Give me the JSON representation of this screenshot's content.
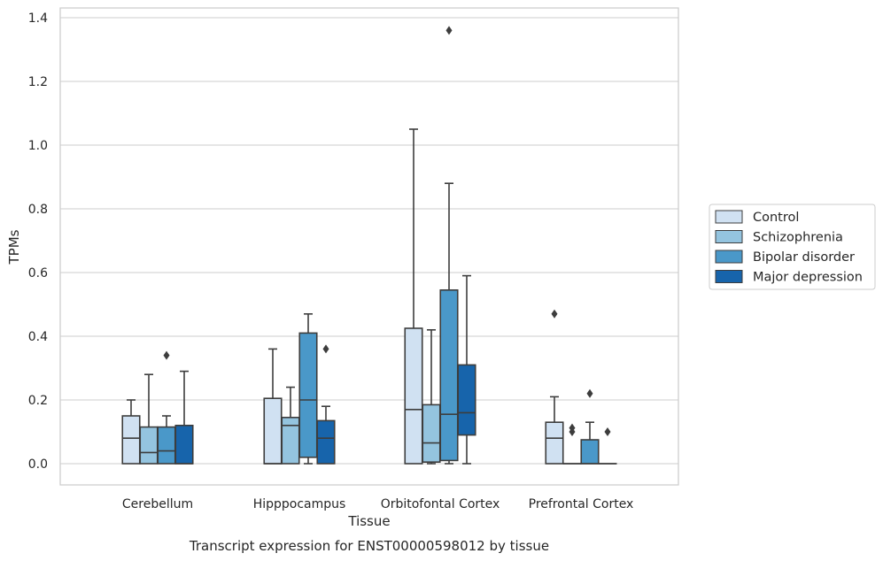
{
  "caption": "Transcript expression for ENST00000598012 by tissue",
  "chart_data": {
    "type": "boxplot",
    "xlabel": "Tissue",
    "ylabel": "TPMs",
    "ylim": [
      -0.065,
      1.43
    ],
    "yticks": [
      0.0,
      0.2,
      0.4,
      0.6,
      0.8,
      1.0,
      1.2,
      1.4
    ],
    "ytick_labels": [
      "0.0",
      "0.2",
      "0.4",
      "0.6",
      "0.8",
      "1.0",
      "1.2",
      "1.4"
    ],
    "grid": "horizontal",
    "legend_position": "right",
    "categories": [
      "Cerebellum",
      "Hipppocampus",
      "Orbitofontal Cortex",
      "Prefrontal Cortex"
    ],
    "series": [
      {
        "name": "Control",
        "color": "#d0e1f2",
        "boxes": [
          {
            "whislo": 0.0,
            "q1": 0.0,
            "med": 0.08,
            "q3": 0.15,
            "whishi": 0.2,
            "fliers": []
          },
          {
            "whislo": 0.0,
            "q1": 0.0,
            "med": 0.0,
            "q3": 0.205,
            "whishi": 0.36,
            "fliers": []
          },
          {
            "whislo": 0.0,
            "q1": 0.0,
            "med": 0.17,
            "q3": 0.425,
            "whishi": 1.05,
            "fliers": []
          },
          {
            "whislo": 0.0,
            "q1": 0.0,
            "med": 0.08,
            "q3": 0.13,
            "whishi": 0.21,
            "fliers": [
              0.47
            ]
          }
        ]
      },
      {
        "name": "Schizophrenia",
        "color": "#94c4df",
        "boxes": [
          {
            "whislo": 0.0,
            "q1": 0.0,
            "med": 0.035,
            "q3": 0.115,
            "whishi": 0.28,
            "fliers": []
          },
          {
            "whislo": 0.0,
            "q1": 0.0,
            "med": 0.12,
            "q3": 0.145,
            "whishi": 0.24,
            "fliers": []
          },
          {
            "whislo": 0.0,
            "q1": 0.005,
            "med": 0.065,
            "q3": 0.185,
            "whishi": 0.42,
            "fliers": []
          },
          {
            "whislo": 0.0,
            "q1": 0.0,
            "med": 0.0,
            "q3": 0.0,
            "whishi": 0.0,
            "fliers": [
              0.1,
              0.112
            ]
          }
        ]
      },
      {
        "name": "Bipolar disorder",
        "color": "#4a98c9",
        "boxes": [
          {
            "whislo": 0.0,
            "q1": 0.0,
            "med": 0.04,
            "q3": 0.115,
            "whishi": 0.15,
            "fliers": [
              0.34
            ]
          },
          {
            "whislo": 0.0,
            "q1": 0.02,
            "med": 0.2,
            "q3": 0.41,
            "whishi": 0.47,
            "fliers": []
          },
          {
            "whislo": 0.0,
            "q1": 0.01,
            "med": 0.155,
            "q3": 0.545,
            "whishi": 0.88,
            "fliers": [
              1.36
            ]
          },
          {
            "whislo": 0.0,
            "q1": 0.0,
            "med": 0.0,
            "q3": 0.075,
            "whishi": 0.13,
            "fliers": [
              0.22
            ]
          }
        ]
      },
      {
        "name": "Major depression",
        "color": "#1764ab",
        "boxes": [
          {
            "whislo": 0.0,
            "q1": 0.0,
            "med": 0.0,
            "q3": 0.12,
            "whishi": 0.29,
            "fliers": []
          },
          {
            "whislo": 0.0,
            "q1": 0.0,
            "med": 0.08,
            "q3": 0.135,
            "whishi": 0.18,
            "fliers": [
              0.36
            ]
          },
          {
            "whislo": 0.0,
            "q1": 0.09,
            "med": 0.16,
            "q3": 0.31,
            "whishi": 0.59,
            "fliers": []
          },
          {
            "whislo": 0.0,
            "q1": 0.0,
            "med": 0.0,
            "q3": 0.0,
            "whishi": 0.0,
            "fliers": [
              0.1
            ]
          }
        ]
      }
    ]
  }
}
